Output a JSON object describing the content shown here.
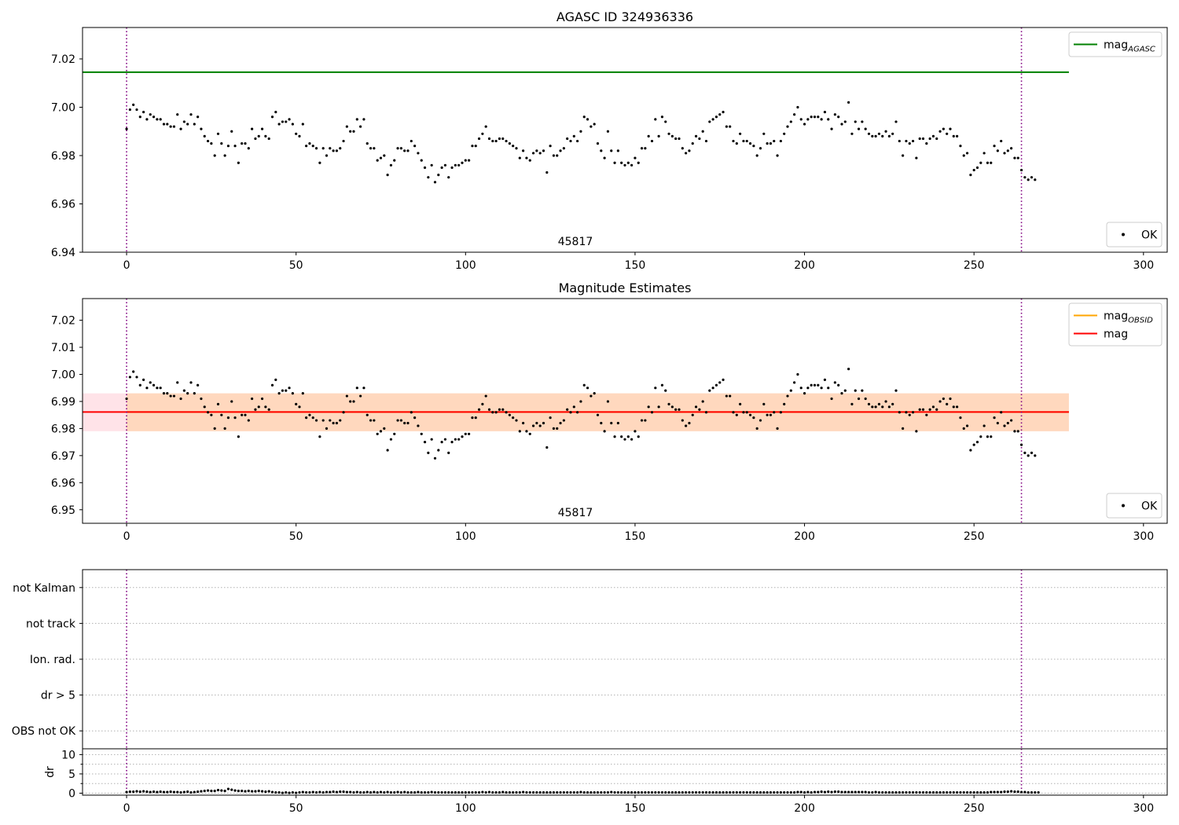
{
  "figure": {
    "background": "#ffffff"
  },
  "chart_data": [
    {
      "id": "p1",
      "type": "scatter",
      "title": "AGASC ID 324936336",
      "xlim": [
        -13,
        307
      ],
      "ylim": [
        6.94,
        7.033
      ],
      "xticks": [
        0,
        50,
        100,
        150,
        200,
        250,
        300
      ],
      "yticks": [
        6.94,
        6.96,
        6.98,
        7.0,
        7.02
      ],
      "ytick_labels": [
        "6.94",
        "6.96",
        "6.98",
        "7.00",
        "7.02"
      ],
      "annotation": "45817",
      "vlines": [
        0,
        264
      ],
      "hlines": [
        {
          "name": "mag_AGASC",
          "y": 7.0145,
          "x": [
            -13,
            278
          ],
          "color": "#008000"
        }
      ],
      "legends": [
        {
          "position": "upper-right",
          "entries": [
            {
              "base": "mag",
              "sub": "AGASC",
              "kind": "line",
              "color": "#008000"
            }
          ]
        },
        {
          "position": "lower-right",
          "entries": [
            {
              "base": "OK",
              "sub": "",
              "kind": "dot",
              "color": "#000000"
            }
          ]
        }
      ]
    },
    {
      "id": "p2",
      "type": "scatter",
      "title": "Magnitude Estimates",
      "xlim": [
        -13,
        307
      ],
      "ylim": [
        6.945,
        7.028
      ],
      "xticks": [
        0,
        50,
        100,
        150,
        200,
        250,
        300
      ],
      "yticks": [
        6.95,
        6.96,
        6.97,
        6.98,
        6.99,
        7.0,
        7.01,
        7.02
      ],
      "ytick_labels": [
        "6.95",
        "6.96",
        "6.97",
        "6.98",
        "6.99",
        "7.00",
        "7.01",
        "7.02"
      ],
      "annotation": "45817",
      "vlines": [
        0,
        264
      ],
      "bands": [
        {
          "y": [
            6.979,
            6.993
          ],
          "x": [
            -13,
            278
          ],
          "color": "#ffc0cb",
          "opacity": 0.45
        },
        {
          "y": [
            6.979,
            6.993
          ],
          "x": [
            0,
            278
          ],
          "color": "#ffa500",
          "opacity": 0.18
        }
      ],
      "hlines": [
        {
          "name": "mag_OBSID",
          "y": 6.9861,
          "x": [
            0,
            278
          ],
          "color": "#ffa500"
        },
        {
          "name": "mag",
          "y": 6.9861,
          "x": [
            -13,
            278
          ],
          "color": "#ff0000"
        }
      ],
      "legends": [
        {
          "position": "upper-right",
          "entries": [
            {
              "base": "mag",
              "sub": "OBSID",
              "kind": "line",
              "color": "#ffa500"
            },
            {
              "base": "mag",
              "sub": "",
              "kind": "line",
              "color": "#ff0000"
            }
          ]
        },
        {
          "position": "lower-right",
          "entries": [
            {
              "base": "OK",
              "sub": "",
              "kind": "dot",
              "color": "#000000"
            }
          ]
        }
      ]
    },
    {
      "id": "p3",
      "type": "scatter",
      "title": "",
      "xlim": [
        -13,
        307
      ],
      "ylim": [
        -0.5,
        4.5
      ],
      "category_labels": [
        "OBS not OK",
        "dr > 5",
        "Ion. rad.",
        "not track",
        "not Kalman"
      ],
      "vlines": [
        0,
        264
      ]
    },
    {
      "id": "p4",
      "type": "scatter",
      "title": "",
      "ylabel": "dr",
      "xlim": [
        -13,
        307
      ],
      "ylim": [
        -0.5,
        11.5
      ],
      "xticks": [
        0,
        50,
        100,
        150,
        200,
        250,
        300
      ],
      "yticks": [
        0,
        5,
        10
      ],
      "ytick_labels": [
        "0",
        "5",
        "10"
      ],
      "vlines": [
        0,
        264
      ]
    }
  ],
  "series": {
    "mag": [
      6.991,
      6.999,
      7.001,
      6.999,
      6.996,
      6.998,
      6.995,
      6.997,
      6.996,
      6.995,
      6.995,
      6.993,
      6.993,
      6.992,
      6.992,
      6.997,
      6.991,
      6.994,
      6.993,
      6.997,
      6.993,
      6.996,
      6.991,
      6.988,
      6.986,
      6.985,
      6.98,
      6.989,
      6.985,
      6.98,
      6.984,
      6.99,
      6.984,
      6.977,
      6.985,
      6.985,
      6.983,
      6.991,
      6.987,
      6.988,
      6.991,
      6.988,
      6.987,
      6.996,
      6.998,
      6.993,
      6.994,
      6.994,
      6.995,
      6.993,
      6.989,
      6.988,
      6.993,
      6.984,
      6.985,
      6.984,
      6.983,
      6.977,
      6.983,
      6.98,
      6.983,
      6.982,
      6.982,
      6.983,
      6.986,
      6.992,
      6.99,
      6.99,
      6.995,
      6.992,
      6.995,
      6.985,
      6.983,
      6.983,
      6.978,
      6.979,
      6.98,
      6.972,
      6.976,
      6.978,
      6.983,
      6.983,
      6.982,
      6.982,
      6.986,
      6.984,
      6.981,
      6.978,
      6.975,
      6.971,
      6.976,
      6.969,
      6.972,
      6.975,
      6.976,
      6.971,
      6.975,
      6.976,
      6.976,
      6.977,
      6.978,
      6.978,
      6.984,
      6.984,
      6.987,
      6.989,
      6.992,
      6.987,
      6.986,
      6.986,
      6.987,
      6.987,
      6.986,
      6.985,
      6.984,
      6.983,
      6.979,
      6.982,
      6.979,
      6.978,
      6.981,
      6.982,
      6.981,
      6.982,
      6.973,
      6.984,
      6.98,
      6.98,
      6.982,
      6.983,
      6.987,
      6.986,
      6.988,
      6.986,
      6.99,
      6.996,
      6.995,
      6.992,
      6.993,
      6.985,
      6.982,
      6.979,
      6.99,
      6.982,
      6.977,
      6.982,
      6.977,
      6.976,
      6.977,
      6.976,
      6.979,
      6.977,
      6.983,
      6.983,
      6.988,
      6.986,
      6.995,
      6.988,
      6.996,
      6.994,
      6.989,
      6.988,
      6.987,
      6.987,
      6.983,
      6.981,
      6.982,
      6.985,
      6.988,
      6.987,
      6.99,
      6.986,
      6.994,
      6.995,
      6.996,
      6.997,
      6.998,
      6.992,
      6.992,
      6.986,
      6.985,
      6.989,
      6.986,
      6.986,
      6.985,
      6.984,
      6.98,
      6.983,
      6.989,
      6.985,
      6.985,
      6.986,
      6.98,
      6.986,
      6.989,
      6.992,
      6.994,
      6.997,
      7.0,
      6.995,
      6.993,
      6.995,
      6.996,
      6.996,
      6.996,
      6.995,
      6.998,
      6.995,
      6.991,
      6.997,
      6.996,
      6.993,
      6.994,
      7.002,
      6.989,
      6.994,
      6.991,
      6.994,
      6.991,
      6.989,
      6.988,
      6.988,
      6.989,
      6.988,
      6.99,
      6.988,
      6.989,
      6.994,
      6.986,
      6.98,
      6.986,
      6.985,
      6.986,
      6.979,
      6.987,
      6.987,
      6.985,
      6.987,
      6.988,
      6.987,
      6.99,
      6.991,
      6.989,
      6.991,
      6.988,
      6.988,
      6.984,
      6.98,
      6.981,
      6.972,
      6.974,
      6.975,
      6.977,
      6.981,
      6.977,
      6.977,
      6.984,
      6.982,
      6.986,
      6.981,
      6.982,
      6.983,
      6.979,
      6.979,
      6.974,
      6.971,
      6.97,
      6.971,
      6.97
    ],
    "dr": [
      0.3,
      0.4,
      0.4,
      0.5,
      0.4,
      0.5,
      0.4,
      0.3,
      0.4,
      0.3,
      0.4,
      0.3,
      0.3,
      0.4,
      0.3,
      0.3,
      0.2,
      0.3,
      0.4,
      0.2,
      0.3,
      0.4,
      0.5,
      0.6,
      0.7,
      0.6,
      0.6,
      0.8,
      0.7,
      0.6,
      1.1,
      0.9,
      0.7,
      0.6,
      0.6,
      0.5,
      0.6,
      0.5,
      0.5,
      0.6,
      0.5,
      0.4,
      0.5,
      0.3,
      0.2,
      0.2,
      0.1,
      0.2,
      0.1,
      0.2,
      0.1,
      0.2,
      0.3,
      0.2,
      0.2,
      0.3,
      0.2,
      0.3,
      0.2,
      0.3,
      0.3,
      0.4,
      0.3,
      0.4,
      0.4,
      0.3,
      0.3,
      0.2,
      0.3,
      0.2,
      0.2,
      0.3,
      0.2,
      0.3,
      0.2,
      0.3,
      0.2,
      0.3,
      0.2,
      0.2,
      0.3,
      0.2,
      0.3,
      0.2,
      0.2,
      0.2,
      0.3,
      0.2,
      0.2,
      0.2,
      0.3,
      0.2,
      0.2,
      0.2,
      0.2,
      0.2,
      0.2,
      0.2,
      0.2,
      0.2,
      0.2,
      0.2,
      0.2,
      0.2,
      0.2,
      0.3,
      0.2,
      0.3,
      0.2,
      0.2,
      0.2,
      0.3,
      0.2,
      0.2,
      0.2,
      0.2,
      0.2,
      0.3,
      0.2,
      0.2,
      0.2,
      0.2,
      0.2,
      0.2,
      0.2,
      0.2,
      0.2,
      0.2,
      0.2,
      0.2,
      0.2,
      0.2,
      0.2,
      0.2,
      0.3,
      0.2,
      0.2,
      0.2,
      0.2,
      0.2,
      0.2,
      0.2,
      0.2,
      0.3,
      0.2,
      0.2,
      0.2,
      0.2,
      0.2,
      0.2,
      0.2,
      0.2,
      0.2,
      0.2,
      0.2,
      0.2,
      0.2,
      0.2,
      0.2,
      0.2,
      0.2,
      0.2,
      0.2,
      0.2,
      0.2,
      0.2,
      0.2,
      0.2,
      0.2,
      0.2,
      0.2,
      0.2,
      0.2,
      0.2,
      0.2,
      0.2,
      0.2,
      0.2,
      0.2,
      0.2,
      0.2,
      0.2,
      0.2,
      0.2,
      0.2,
      0.2,
      0.2,
      0.2,
      0.2,
      0.2,
      0.2,
      0.2,
      0.2,
      0.2,
      0.2,
      0.2,
      0.2,
      0.2,
      0.3,
      0.3,
      0.2,
      0.3,
      0.2,
      0.3,
      0.3,
      0.4,
      0.3,
      0.4,
      0.3,
      0.4,
      0.4,
      0.3,
      0.3,
      0.3,
      0.3,
      0.3,
      0.3,
      0.3,
      0.3,
      0.2,
      0.2,
      0.3,
      0.2,
      0.2,
      0.2,
      0.2,
      0.2,
      0.2,
      0.2,
      0.2,
      0.2,
      0.2,
      0.2,
      0.2,
      0.2,
      0.2,
      0.2,
      0.2,
      0.2,
      0.2,
      0.2,
      0.2,
      0.2,
      0.2,
      0.2,
      0.2,
      0.2,
      0.2,
      0.2,
      0.2,
      0.2,
      0.2,
      0.2,
      0.2,
      0.2,
      0.3,
      0.3,
      0.3,
      0.3,
      0.4,
      0.4,
      0.5,
      0.4,
      0.4,
      0.3,
      0.3,
      0.2,
      0.2,
      0.2,
      0.2
    ]
  }
}
